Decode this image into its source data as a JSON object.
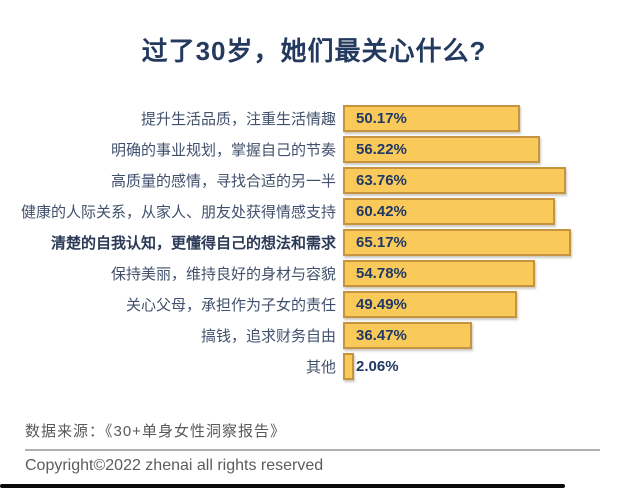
{
  "title": "过了30岁，她们最关心什么?",
  "chart_data": {
    "type": "bar",
    "orientation": "horizontal",
    "title": "过了30岁，她们最关心什么?",
    "unit": "%",
    "xlim": [
      0,
      66
    ],
    "grid": false,
    "legend": false,
    "categories": [
      "提升生活品质，注重生活情趣",
      "明确的事业规划，掌握自己的节奏",
      "高质量的感情，寻找合适的另一半",
      "健康的人际关系，从家人、朋友处获得情感支持",
      "清楚的自我认知，更懂得自己的想法和需求",
      "保持美丽，维持良好的身材与容貌",
      "关心父母，承担作为子女的责任",
      "搞钱，追求财务自由",
      "其他"
    ],
    "values": [
      50.17,
      56.22,
      63.76,
      60.42,
      65.17,
      54.78,
      49.49,
      36.47,
      2.06
    ],
    "value_labels": [
      "50.17%",
      "56.22%",
      "63.76%",
      "60.42%",
      "65.17%",
      "54.78%",
      "49.49%",
      "36.47%",
      "2.06%"
    ],
    "emphasized_category": "清楚的自我认知，更懂得自己的想法和需求",
    "bar_color": "#f9ca5a",
    "bar_border_color": "#c6943f",
    "value_text_color": "#1f3864",
    "title_color": "#24395e"
  },
  "rows": [
    {
      "label": "提升生活品质，注重生活情趣",
      "value": 50.17,
      "value_label": "50.17%",
      "emphasis": false
    },
    {
      "label": "明确的事业规划，掌握自己的节奏",
      "value": 56.22,
      "value_label": "56.22%",
      "emphasis": false
    },
    {
      "label": "高质量的感情，寻找合适的另一半",
      "value": 63.76,
      "value_label": "63.76%",
      "emphasis": false
    },
    {
      "label": "健康的人际关系，从家人、朋友处获得情感支持",
      "value": 60.42,
      "value_label": "60.42%",
      "emphasis": false
    },
    {
      "label": "清楚的自我认知，更懂得自己的想法和需求",
      "value": 65.17,
      "value_label": "65.17%",
      "emphasis": true
    },
    {
      "label": "保持美丽，维持良好的身材与容貌",
      "value": 54.78,
      "value_label": "54.78%",
      "emphasis": false
    },
    {
      "label": "关心父母，承担作为子女的责任",
      "value": 49.49,
      "value_label": "49.49%",
      "emphasis": false
    },
    {
      "label": "搞钱，追求财务自由",
      "value": 36.47,
      "value_label": "36.47%",
      "emphasis": false
    },
    {
      "label": "其他",
      "value": 2.06,
      "value_label": "2.06%",
      "emphasis": false
    }
  ],
  "footer": {
    "source": "数据来源：《30+单身女性洞察报告》",
    "copyright": "Copyright©2022  zhenai  all rights reserved"
  }
}
